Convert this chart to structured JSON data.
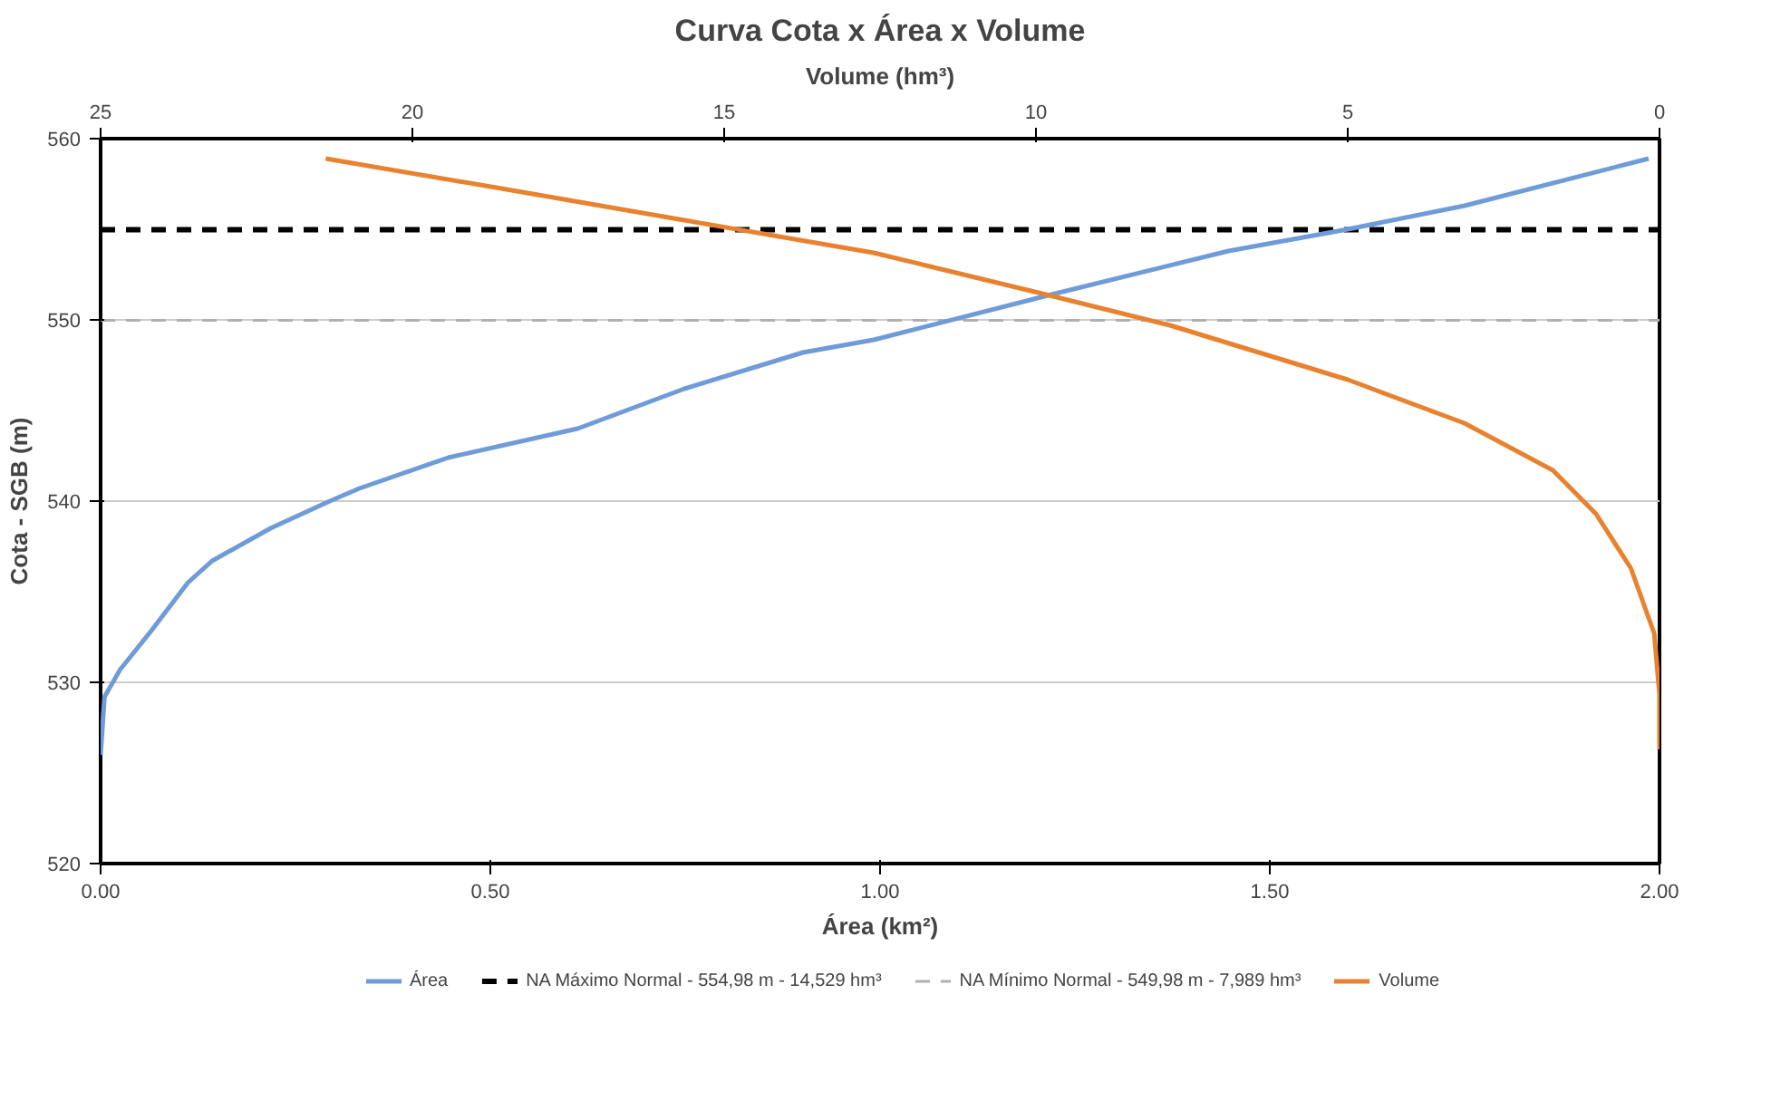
{
  "chart_data": {
    "type": "line",
    "title": "Curva Cota x Área x Volume",
    "xlabel": "Área (km²)",
    "x2label": "Volume (hm³)",
    "ylabel": "Cota - SGB (m)",
    "xlim": [
      0,
      2
    ],
    "xticks": [
      {
        "value": 0,
        "label": "0.00"
      },
      {
        "value": 0.5,
        "label": "0.50"
      },
      {
        "value": 1,
        "label": "1.00"
      },
      {
        "value": 1.5,
        "label": "1.50"
      },
      {
        "value": 2,
        "label": "2.00"
      }
    ],
    "x2lim": [
      25,
      0
    ],
    "x2ticks": [
      25,
      20,
      15,
      10,
      5,
      0
    ],
    "ylim": [
      520,
      560
    ],
    "yticks": [
      520,
      530,
      540,
      550,
      560
    ],
    "grid": "y",
    "legend": "bottom",
    "line_style": "solid",
    "series": [
      {
        "name": "Área",
        "color": "#6f9bd8",
        "x": [
          0,
          0.005,
          0.025,
          0.066,
          0.112,
          0.143,
          0.218,
          0.294,
          0.332,
          0.446,
          0.612,
          0.749,
          0.901,
          0.992,
          1.22,
          1.447,
          1.6,
          1.75,
          1.986
        ],
        "values": [
          526,
          529.2,
          530.7,
          532.9,
          535.5,
          536.7,
          538.5,
          540,
          540.7,
          542.4,
          544,
          546.2,
          548.2,
          548.9,
          551.4,
          553.8,
          555,
          556.3,
          558.9
        ]
      },
      {
        "name": "Volume",
        "color": "#e8822f",
        "axis": "x2",
        "x": [
          21.39,
          18.49,
          15.64,
          12.6,
          9.84,
          7.85,
          5.0,
          3.13,
          1.71,
          1.02,
          0.46,
          0.085,
          0,
          0
        ],
        "values": [
          558.9,
          557.2,
          555.5,
          553.7,
          551.4,
          549.7,
          546.7,
          544.3,
          541.7,
          539.3,
          536.3,
          532.7,
          529.3,
          526.3
        ]
      }
    ],
    "ref_lines": [
      {
        "axis": "y",
        "value": 554.98,
        "label": "NA Máximo Normal - 554,98 m - 14,529 hm³",
        "color": "#000000",
        "line_style": "dashed"
      },
      {
        "axis": "y",
        "value": 549.98,
        "label": "NA Mínimo Normal - 549,98 m - 7,989 hm³",
        "color": "#b0b0b0",
        "line_style": "dashed"
      }
    ]
  }
}
